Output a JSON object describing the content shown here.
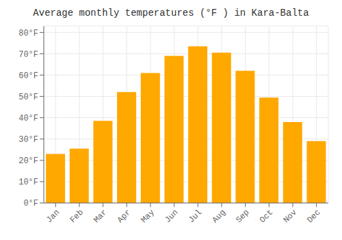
{
  "chart_data": {
    "type": "bar",
    "title": "Average monthly temperatures (°F ) in Kara-Balta",
    "categories": [
      "Jan",
      "Feb",
      "Mar",
      "Apr",
      "May",
      "Jun",
      "Jul",
      "Aug",
      "Sep",
      "Oct",
      "Nov",
      "Dec"
    ],
    "values": [
      23,
      25.5,
      38.5,
      52,
      61,
      69,
      73.5,
      70.5,
      62,
      49.5,
      38,
      29
    ],
    "color": "#FFA800",
    "ylim": [
      0,
      83
    ],
    "yticks": [
      {
        "value": 0,
        "label": "0°F"
      },
      {
        "value": 10,
        "label": "10°F"
      },
      {
        "value": 20,
        "label": "20°F"
      },
      {
        "value": 30,
        "label": "30°F"
      },
      {
        "value": 40,
        "label": "40°F"
      },
      {
        "value": 50,
        "label": "50°F"
      },
      {
        "value": 60,
        "label": "60°F"
      },
      {
        "value": 70,
        "label": "70°F"
      },
      {
        "value": 80,
        "label": "80°F"
      }
    ],
    "grid": true
  }
}
